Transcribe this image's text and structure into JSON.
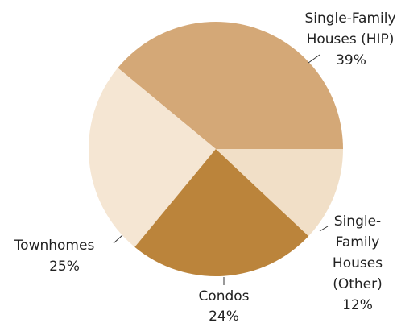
{
  "chart_data": {
    "type": "pie",
    "categories": [
      "Single-Family Houses (HIP)",
      "Townhomes",
      "Condos",
      "Single-Family Houses (Other)"
    ],
    "values": [
      39,
      25,
      24,
      12
    ],
    "value_labels": [
      "39%",
      "25%",
      "24%",
      "12%"
    ],
    "colors": [
      "#d4a877",
      "#f5e6d3",
      "#bb843b",
      "#f1dfc7"
    ]
  }
}
